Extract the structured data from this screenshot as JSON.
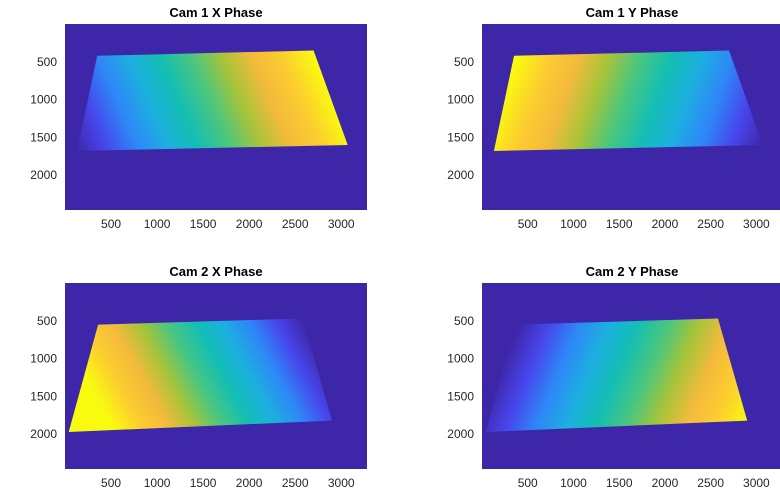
{
  "figure": {
    "background": "#ffffff",
    "axes_background": "#3e26a8",
    "colormap": "parula",
    "colormap_stops": [
      "#3e26a8",
      "#4746eb",
      "#2e87f7",
      "#1cafdf",
      "#14bfb2",
      "#4ac67f",
      "#a6c43a",
      "#f4ba3c",
      "#fcce2e",
      "#f9fb0e"
    ]
  },
  "chart_data": [
    {
      "type": "heatmap",
      "title": "Cam 1 X Phase",
      "xlabel": "",
      "ylabel": "",
      "xticks": [
        500,
        1000,
        1500,
        2000,
        2500,
        3000
      ],
      "yticks": [
        500,
        1000,
        1500,
        2000
      ],
      "xlim": [
        0,
        3280
      ],
      "ylim": [
        2460,
        0
      ],
      "y_direction": "reverse",
      "grid": false,
      "background_value": 0,
      "quad": [
        [
          350,
          420
        ],
        [
          2700,
          350
        ],
        [
          3070,
          1600
        ],
        [
          130,
          1680
        ]
      ],
      "value_range": [
        0,
        1
      ],
      "gradient": {
        "low_at": [
          130,
          1680
        ],
        "high_at": [
          2680,
          350
        ]
      }
    },
    {
      "type": "heatmap",
      "title": "Cam 1 Y Phase",
      "xlabel": "",
      "ylabel": "",
      "xticks": [
        500,
        1000,
        1500,
        2000,
        2500,
        3000
      ],
      "yticks": [
        500,
        1000,
        1500,
        2000
      ],
      "xlim": [
        0,
        3280
      ],
      "ylim": [
        2460,
        0
      ],
      "y_direction": "reverse",
      "grid": false,
      "background_value": 0,
      "quad": [
        [
          350,
          420
        ],
        [
          2700,
          350
        ],
        [
          3070,
          1600
        ],
        [
          130,
          1680
        ]
      ],
      "value_range": [
        0,
        1
      ],
      "gradient": {
        "low_at": [
          3070,
          1600
        ],
        "high_at": [
          380,
          440
        ]
      }
    },
    {
      "type": "heatmap",
      "title": "Cam 2 X Phase",
      "xlabel": "",
      "ylabel": "",
      "xticks": [
        500,
        1000,
        1500,
        2000,
        2500,
        3000
      ],
      "yticks": [
        500,
        1000,
        1500,
        2000
      ],
      "xlim": [
        0,
        3280
      ],
      "ylim": [
        2460,
        0
      ],
      "y_direction": "reverse",
      "grid": false,
      "background_value": 0,
      "quad": [
        [
          360,
          550
        ],
        [
          2580,
          470
        ],
        [
          2900,
          1820
        ],
        [
          40,
          1970
        ]
      ],
      "value_range": [
        0,
        1
      ],
      "gradient": {
        "low_at": [
          2580,
          480
        ],
        "high_at": [
          500,
          1850
        ]
      }
    },
    {
      "type": "heatmap",
      "title": "Cam 2 Y Phase",
      "xlabel": "",
      "ylabel": "",
      "xticks": [
        500,
        1000,
        1500,
        2000,
        2500,
        3000
      ],
      "yticks": [
        500,
        1000,
        1500,
        2000
      ],
      "xlim": [
        0,
        3280
      ],
      "ylim": [
        2460,
        0
      ],
      "y_direction": "reverse",
      "grid": false,
      "background_value": 0,
      "quad": [
        [
          360,
          550
        ],
        [
          2580,
          470
        ],
        [
          2900,
          1820
        ],
        [
          40,
          1970
        ]
      ],
      "value_range": [
        0,
        1
      ],
      "gradient": {
        "low_at": [
          400,
          560
        ],
        "high_at": [
          2900,
          1820
        ]
      }
    }
  ]
}
